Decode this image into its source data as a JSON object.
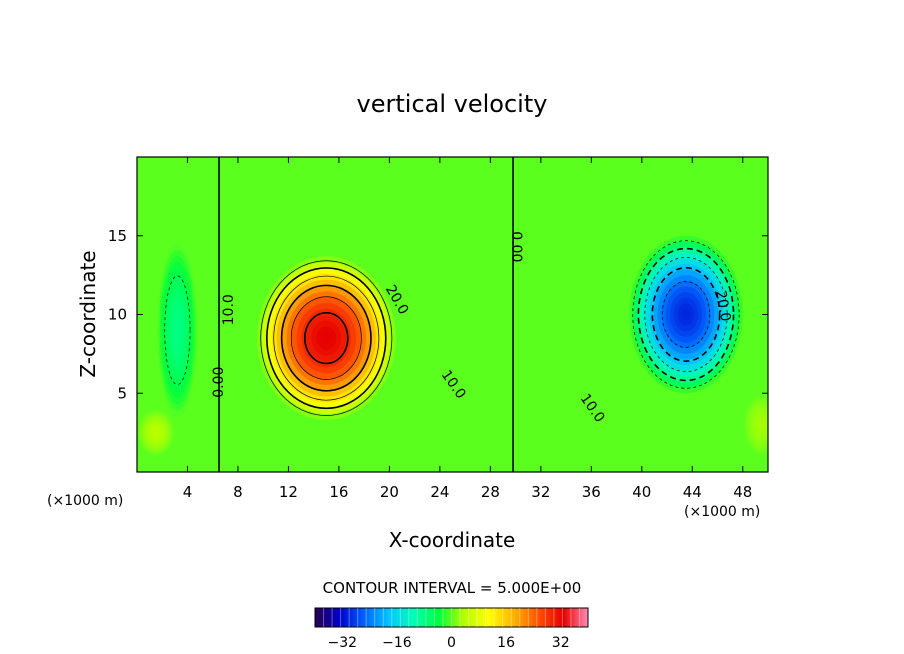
{
  "chart_data": {
    "type": "heatmap",
    "title": "vertical velocity",
    "xlabel": "X-coordinate",
    "ylabel": "Z-coordinate",
    "x_unit_label": "(×1000 m)",
    "y_unit_label": "(×1000 m)",
    "xlim": [
      0,
      50
    ],
    "ylim": [
      0,
      20
    ],
    "x_ticks": [
      4,
      8,
      12,
      16,
      20,
      24,
      28,
      32,
      36,
      40,
      44,
      48
    ],
    "y_ticks": [
      5,
      10,
      15
    ],
    "contour_interval_label": "CONTOUR INTERVAL = 5.000E+00",
    "contour_interval": 5,
    "colorbar": {
      "range": [
        -40,
        40
      ],
      "ticks": [
        -32,
        -16,
        0,
        16,
        32
      ],
      "colors": [
        "#280050",
        "#0000c8",
        "#0064ff",
        "#00c8ff",
        "#00ffb4",
        "#00ff3c",
        "#b4ff00",
        "#ffff00",
        "#ffb400",
        "#ff5000",
        "#e60000",
        "#ff8cb4"
      ]
    },
    "cells": [
      {
        "name": "updraft",
        "x": 15,
        "z": 8.5,
        "peak": 33,
        "sx": 5.5,
        "sz": 5.2
      },
      {
        "name": "downdraft",
        "x": 43.5,
        "z": 10,
        "peak": -30,
        "sx": 4.5,
        "sz": 5.0
      },
      {
        "name": "weak-west-down",
        "x": 3.2,
        "z": 9,
        "peak": -8,
        "sx": 1.6,
        "sz": 5.5
      },
      {
        "name": "weak-west-up",
        "x": 1.5,
        "z": 2.5,
        "peak": 4,
        "sx": 1.5,
        "sz": 1.5
      },
      {
        "name": "weak-east-up",
        "x": 49.5,
        "z": 3,
        "peak": 3,
        "sx": 1.5,
        "sz": 2.0
      }
    ],
    "contour_labels": [
      {
        "text": "0.00",
        "x": 29.7,
        "z": 14.3,
        "rotate": 90
      },
      {
        "text": "20.0",
        "x": 20.3,
        "z": 10.8,
        "rotate": 60
      },
      {
        "text": "10.0",
        "x": 7.6,
        "z": 10.3,
        "rotate": -90
      },
      {
        "text": "10.0",
        "x": 24.8,
        "z": 5.4,
        "rotate": 55
      },
      {
        "text": "0.00",
        "x": 6.8,
        "z": 5.7,
        "rotate": -90
      },
      {
        "text": "20.0",
        "x": 46.1,
        "z": 10.5,
        "rotate": 80
      },
      {
        "text": "10.0",
        "x": 35.8,
        "z": 3.9,
        "rotate": 55
      }
    ]
  }
}
